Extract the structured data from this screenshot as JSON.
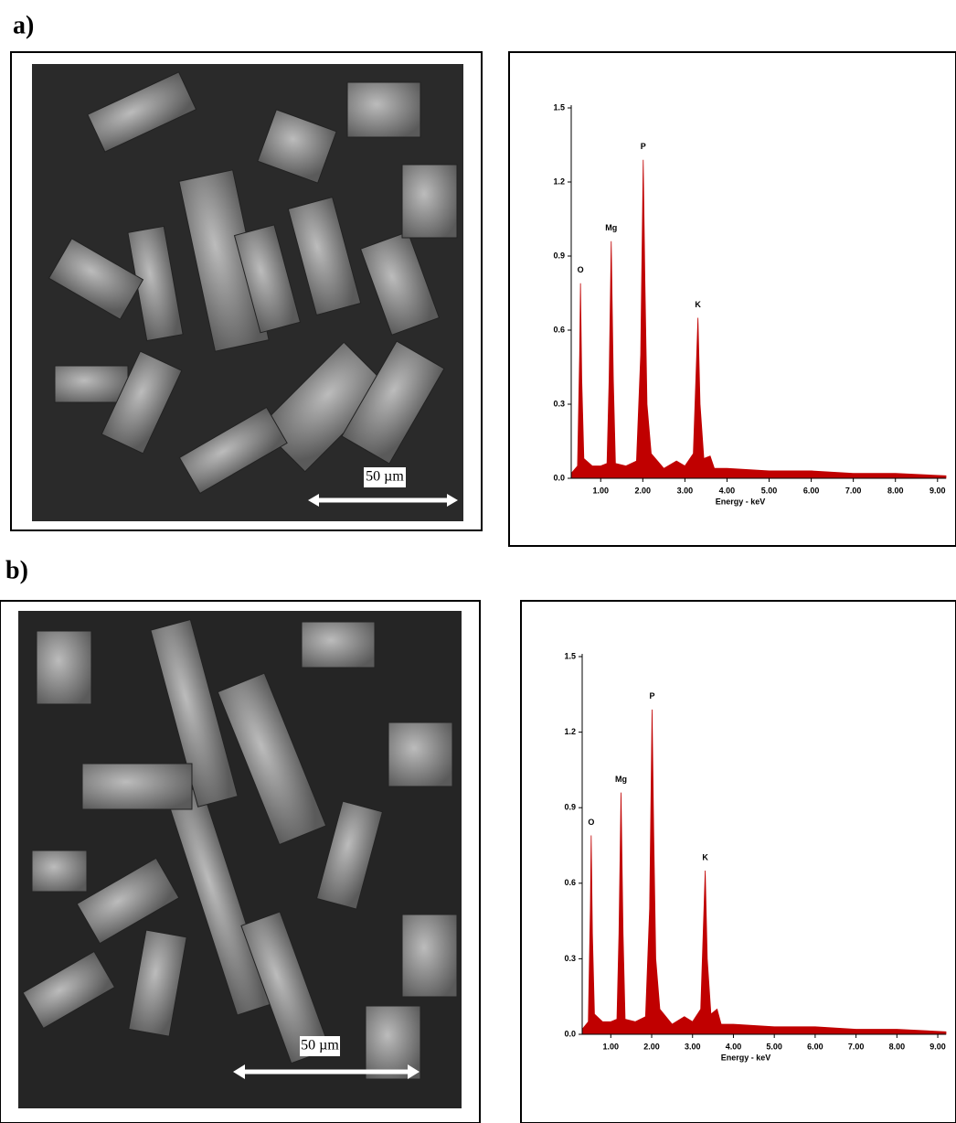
{
  "panels": [
    {
      "label": "a)",
      "scale_bar": "50 µm"
    },
    {
      "label": "b)",
      "scale_bar": "50 µm"
    }
  ],
  "chart_data": [
    {
      "type": "area",
      "xlabel": "Energy - keV",
      "color": "#c00000",
      "x": [
        0.3,
        0.45,
        0.5,
        0.52,
        0.55,
        0.6,
        0.8,
        1.0,
        1.15,
        1.2,
        1.25,
        1.3,
        1.35,
        1.6,
        1.85,
        1.95,
        2.01,
        2.05,
        2.1,
        2.2,
        2.5,
        2.8,
        3.0,
        3.2,
        3.28,
        3.31,
        3.36,
        3.45,
        3.6,
        3.7,
        4.0,
        5.0,
        6.0,
        7.0,
        8.0,
        9.2
      ],
      "values": [
        0.02,
        0.05,
        0.5,
        0.79,
        0.4,
        0.08,
        0.05,
        0.05,
        0.06,
        0.4,
        0.96,
        0.4,
        0.06,
        0.05,
        0.07,
        0.5,
        1.29,
        0.8,
        0.3,
        0.1,
        0.04,
        0.07,
        0.05,
        0.1,
        0.5,
        0.65,
        0.3,
        0.08,
        0.09,
        0.04,
        0.04,
        0.03,
        0.03,
        0.02,
        0.02,
        0.01
      ],
      "annotations": [
        {
          "text": "O",
          "x": 0.52,
          "y": 0.79
        },
        {
          "text": "Mg",
          "x": 1.25,
          "y": 0.96
        },
        {
          "text": "P",
          "x": 2.01,
          "y": 1.29
        },
        {
          "text": "K",
          "x": 3.31,
          "y": 0.65
        }
      ],
      "xlim": [
        0.3,
        9.2
      ],
      "ylim": [
        0,
        1.5
      ],
      "xticks": [
        {
          "value": 1,
          "label": "1.00"
        },
        {
          "value": 2,
          "label": "2.00"
        },
        {
          "value": 3,
          "label": "3.00"
        },
        {
          "value": 4,
          "label": "4.00"
        },
        {
          "value": 5,
          "label": "5.00"
        },
        {
          "value": 6,
          "label": "6.00"
        },
        {
          "value": 7,
          "label": "7.00"
        },
        {
          "value": 8,
          "label": "8.00"
        },
        {
          "value": 9,
          "label": "9.00"
        }
      ],
      "yticks": [
        {
          "value": 0,
          "label": "0.0"
        },
        0.3,
        0.6,
        0.9,
        1.2,
        1.5
      ]
    },
    {
      "type": "area",
      "xlabel": "Energy - keV",
      "color": "#c00000",
      "x": [
        0.3,
        0.45,
        0.5,
        0.52,
        0.55,
        0.6,
        0.8,
        1.0,
        1.15,
        1.2,
        1.25,
        1.3,
        1.35,
        1.6,
        1.85,
        1.95,
        2.01,
        2.05,
        2.1,
        2.2,
        2.5,
        2.8,
        3.0,
        3.2,
        3.28,
        3.31,
        3.36,
        3.45,
        3.6,
        3.7,
        4.0,
        5.0,
        6.0,
        7.0,
        8.0,
        9.2
      ],
      "values": [
        0.02,
        0.05,
        0.5,
        0.79,
        0.4,
        0.08,
        0.05,
        0.05,
        0.06,
        0.4,
        0.96,
        0.4,
        0.06,
        0.05,
        0.07,
        0.5,
        1.29,
        0.8,
        0.3,
        0.1,
        0.04,
        0.07,
        0.05,
        0.1,
        0.5,
        0.65,
        0.3,
        0.08,
        0.1,
        0.04,
        0.04,
        0.03,
        0.03,
        0.02,
        0.02,
        0.01
      ],
      "annotations": [
        {
          "text": "O",
          "x": 0.52,
          "y": 0.79
        },
        {
          "text": "Mg",
          "x": 1.25,
          "y": 0.96
        },
        {
          "text": "P",
          "x": 2.01,
          "y": 1.29
        },
        {
          "text": "K",
          "x": 3.31,
          "y": 0.65
        }
      ],
      "xlim": [
        0.3,
        9.2
      ],
      "ylim": [
        0,
        1.5
      ],
      "xticks": [
        {
          "value": 1,
          "label": "1.00"
        },
        {
          "value": 2,
          "label": "2.00"
        },
        {
          "value": 3,
          "label": "3.00"
        },
        {
          "value": 4,
          "label": "4.00"
        },
        {
          "value": 5,
          "label": "5.00"
        },
        {
          "value": 6,
          "label": "6.00"
        },
        {
          "value": 7,
          "label": "7.00"
        },
        {
          "value": 8,
          "label": "8.00"
        },
        {
          "value": 9,
          "label": "9.00"
        }
      ],
      "yticks": [
        {
          "value": 0,
          "label": "0.0"
        },
        0.3,
        0.6,
        0.9,
        1.2,
        1.5
      ]
    }
  ]
}
